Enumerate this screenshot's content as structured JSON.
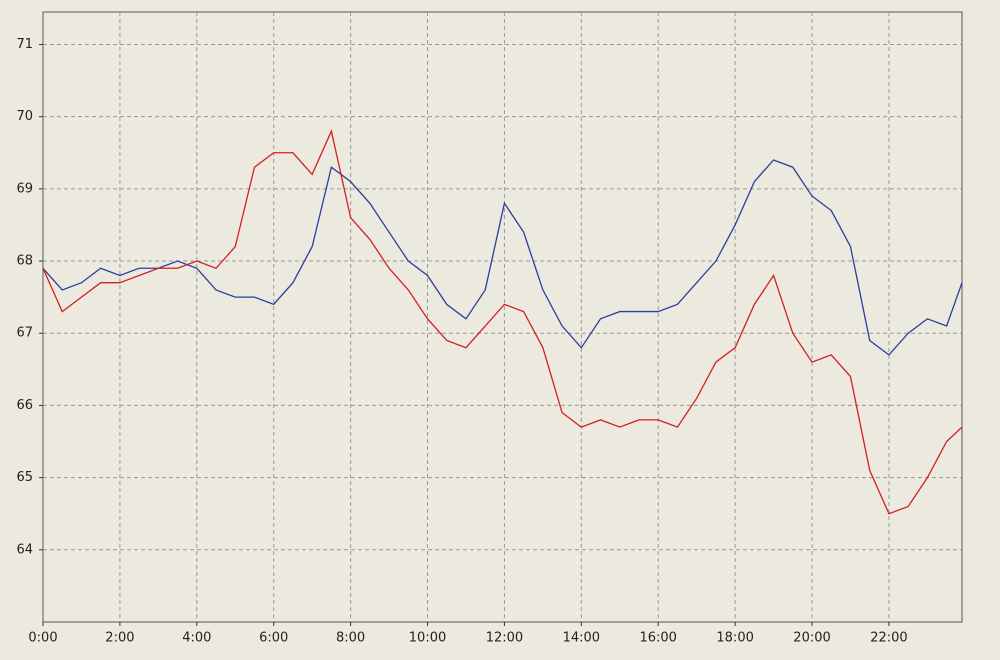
{
  "chart_data": {
    "type": "line",
    "x": [
      0,
      0.5,
      1,
      1.5,
      2,
      2.5,
      3,
      3.5,
      4,
      4.5,
      5,
      5.5,
      6,
      6.5,
      7,
      7.5,
      8,
      8.5,
      9,
      9.5,
      10,
      10.5,
      11,
      11.5,
      12,
      12.5,
      13,
      13.5,
      14,
      14.5,
      15,
      15.5,
      16,
      16.5,
      17,
      17.5,
      18,
      18.5,
      19,
      19.5,
      20,
      20.5,
      21,
      21.5,
      22,
      22.5,
      23,
      23.5,
      23.9
    ],
    "series": [
      {
        "color": "#2b3f9e",
        "values": [
          67.9,
          67.6,
          67.7,
          67.9,
          67.8,
          67.9,
          67.9,
          68.0,
          67.9,
          67.6,
          67.5,
          67.5,
          67.4,
          67.7,
          68.2,
          69.3,
          69.1,
          68.8,
          68.4,
          68.0,
          67.8,
          67.4,
          67.2,
          67.6,
          68.8,
          68.4,
          67.6,
          67.1,
          66.8,
          67.2,
          67.3,
          67.3,
          67.3,
          67.4,
          67.7,
          68.0,
          68.5,
          69.1,
          69.4,
          69.3,
          68.9,
          68.7,
          68.2,
          66.9,
          66.7,
          67.0,
          67.2,
          67.1,
          67.7
        ]
      },
      {
        "color": "#d42020",
        "values": [
          67.9,
          67.3,
          67.5,
          67.7,
          67.7,
          67.8,
          67.9,
          67.9,
          68.0,
          67.9,
          68.2,
          69.3,
          69.5,
          69.5,
          69.2,
          69.8,
          68.6,
          68.3,
          67.9,
          67.6,
          67.2,
          66.9,
          66.8,
          67.1,
          67.4,
          67.3,
          66.8,
          65.9,
          65.7,
          65.8,
          65.7,
          65.8,
          65.8,
          65.7,
          66.1,
          66.6,
          66.8,
          67.4,
          67.8,
          67.0,
          66.6,
          66.7,
          66.4,
          65.1,
          64.5,
          64.6,
          65.0,
          65.5,
          65.7
        ]
      }
    ],
    "xlim": [
      0,
      23.9
    ],
    "ylim": [
      63,
      71.45
    ],
    "xticks": [
      {
        "value": 0,
        "label": "0:00"
      },
      {
        "value": 2,
        "label": "2:00"
      },
      {
        "value": 4,
        "label": "4:00"
      },
      {
        "value": 6,
        "label": "6:00"
      },
      {
        "value": 8,
        "label": "8:00"
      },
      {
        "value": 10,
        "label": "10:00"
      },
      {
        "value": 12,
        "label": "12:00"
      },
      {
        "value": 14,
        "label": "14:00"
      },
      {
        "value": 16,
        "label": "16:00"
      },
      {
        "value": 18,
        "label": "18:00"
      },
      {
        "value": 20,
        "label": "20:00"
      },
      {
        "value": 22,
        "label": "22:00"
      }
    ],
    "yticks": [
      64,
      65,
      66,
      67,
      68,
      69,
      70,
      71
    ],
    "grid": true
  }
}
